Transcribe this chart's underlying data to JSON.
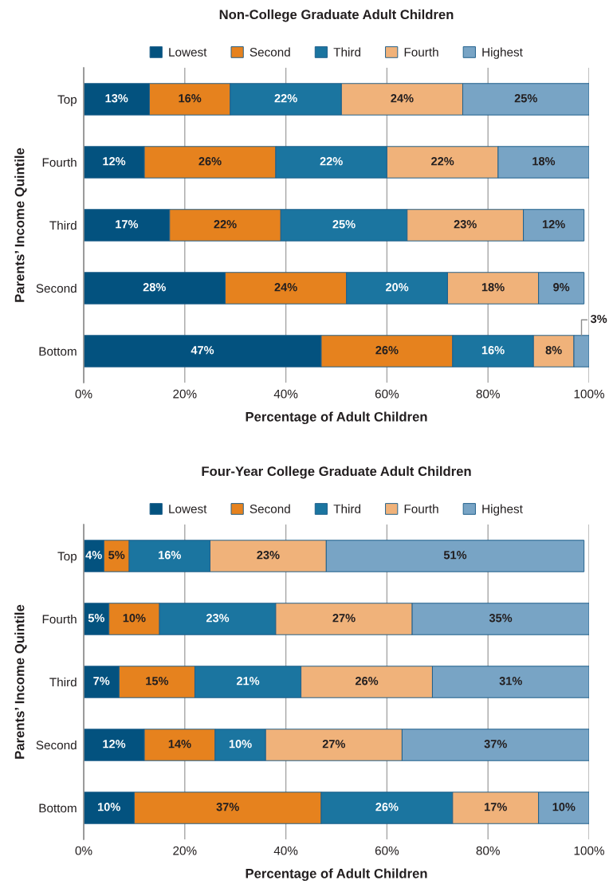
{
  "chart_data": [
    {
      "type": "bar",
      "orientation": "horizontal",
      "stacked": true,
      "title": "Non-College Graduate Adult Children",
      "xlabel": "Percentage of Adult Children",
      "ylabel": "Parents’ Income Quintile",
      "categories": [
        "Top",
        "Fourth",
        "Third",
        "Second",
        "Bottom"
      ],
      "series": [
        {
          "name": "Lowest",
          "color": "#03527f",
          "values": [
            13,
            12,
            17,
            28,
            47
          ],
          "value_labels": [
            "13%",
            "12%",
            "17%",
            "28%",
            "47%"
          ]
        },
        {
          "name": "Second",
          "color": "#e6821e",
          "values": [
            16,
            26,
            22,
            24,
            26
          ],
          "value_labels": [
            "16%",
            "26%",
            "22%",
            "24%",
            "26%"
          ]
        },
        {
          "name": "Third",
          "color": "#1b75a0",
          "values": [
            22,
            22,
            25,
            20,
            16
          ],
          "value_labels": [
            "22%",
            "22%",
            "25%",
            "20%",
            "16%"
          ]
        },
        {
          "name": "Fourth",
          "color": "#f0b27a",
          "values": [
            24,
            22,
            23,
            18,
            8
          ],
          "value_labels": [
            "24%",
            "22%",
            "23%",
            "18%",
            "8%"
          ]
        },
        {
          "name": "Highest",
          "color": "#78a4c5",
          "values": [
            25,
            18,
            12,
            9,
            3
          ],
          "value_labels": [
            "25%",
            "18%",
            "12%",
            "9%",
            "3%"
          ]
        }
      ],
      "xlim": [
        0,
        100
      ],
      "xticks": [
        {
          "value": 0,
          "label": "0%"
        },
        {
          "value": 20,
          "label": "20%"
        },
        {
          "value": 40,
          "label": "40%"
        },
        {
          "value": 60,
          "label": "60%"
        },
        {
          "value": 80,
          "label": "80%"
        },
        {
          "value": 100,
          "label": "100%"
        }
      ],
      "grid": "x",
      "legend": "top"
    },
    {
      "type": "bar",
      "orientation": "horizontal",
      "stacked": true,
      "title": "Four-Year College Graduate Adult Children",
      "xlabel": "Percentage of Adult Children",
      "ylabel": "Parents’ Income Quintile",
      "categories": [
        "Top",
        "Fourth",
        "Third",
        "Second",
        "Bottom"
      ],
      "series": [
        {
          "name": "Lowest",
          "color": "#03527f",
          "values": [
            4,
            5,
            7,
            12,
            10
          ],
          "value_labels": [
            "4%",
            "5%",
            "7%",
            "12%",
            "10%"
          ]
        },
        {
          "name": "Second",
          "color": "#e6821e",
          "values": [
            5,
            10,
            15,
            14,
            37
          ],
          "value_labels": [
            "5%",
            "10%",
            "15%",
            "14%",
            "37%"
          ]
        },
        {
          "name": "Third",
          "color": "#1b75a0",
          "values": [
            16,
            23,
            21,
            10,
            26
          ],
          "value_labels": [
            "16%",
            "23%",
            "21%",
            "10%",
            "26%"
          ]
        },
        {
          "name": "Fourth",
          "color": "#f0b27a",
          "values": [
            23,
            27,
            26,
            27,
            17
          ],
          "value_labels": [
            "23%",
            "27%",
            "26%",
            "27%",
            "17%"
          ]
        },
        {
          "name": "Highest",
          "color": "#78a4c5",
          "values": [
            51,
            35,
            31,
            37,
            10
          ],
          "value_labels": [
            "51%",
            "35%",
            "31%",
            "37%",
            "10%"
          ]
        }
      ],
      "xlim": [
        0,
        100
      ],
      "xticks": [
        {
          "value": 0,
          "label": "0%"
        },
        {
          "value": 20,
          "label": "20%"
        },
        {
          "value": 40,
          "label": "40%"
        },
        {
          "value": 60,
          "label": "60%"
        },
        {
          "value": 80,
          "label": "80%"
        },
        {
          "value": 100,
          "label": "100%"
        }
      ],
      "grid": "x",
      "legend": "top"
    }
  ]
}
